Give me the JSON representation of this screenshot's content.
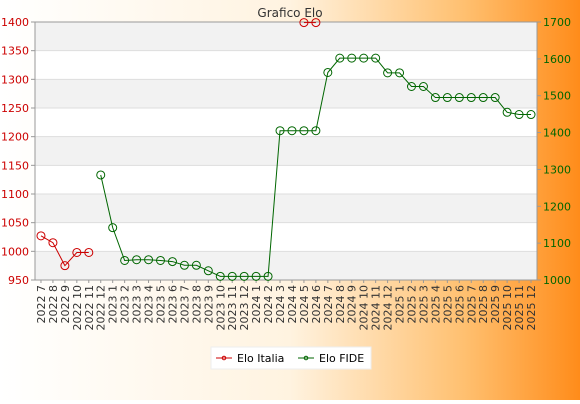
{
  "chart_data": {
    "type": "line",
    "title": "Grafico Elo",
    "categories": [
      "2022 7",
      "2022 8",
      "2022 9",
      "2022 10",
      "2022 11",
      "2022 12",
      "2023 1",
      "2023 2",
      "2023 3",
      "2023 4",
      "2023 5",
      "2023 6",
      "2023 7",
      "2023 8",
      "2023 9",
      "2023 10",
      "2023 11",
      "2023 12",
      "2024 1",
      "2024 2",
      "2024 3",
      "2024 4",
      "2024 5",
      "2024 6",
      "2024 7",
      "2024 8",
      "2024 9",
      "2024 10",
      "2024 11",
      "2024 12",
      "2025 1",
      "2025 2",
      "2025 3",
      "2025 4",
      "2025 5",
      "2025 6",
      "2025 7",
      "2025 8",
      "2025 9",
      "2025 10",
      "2025 11",
      "2025 12"
    ],
    "y_left": {
      "min": 950,
      "max": 1400,
      "ticks": [
        950,
        1000,
        1050,
        1100,
        1150,
        1200,
        1250,
        1300,
        1350,
        1400
      ],
      "color": "#cc0000"
    },
    "y_right": {
      "min": 1000,
      "max": 1700,
      "ticks": [
        1000,
        1100,
        1200,
        1300,
        1400,
        1500,
        1600,
        1700
      ],
      "color": "#006600"
    },
    "series": [
      {
        "name": "Elo Italia",
        "axis": "left",
        "color": "#cc0000",
        "values": [
          1027,
          1015,
          975,
          998,
          998,
          null,
          null,
          null,
          null,
          null,
          null,
          null,
          null,
          null,
          null,
          null,
          null,
          null,
          null,
          null,
          null,
          null,
          1399,
          1399,
          null,
          null,
          null,
          null,
          null,
          null,
          null,
          null,
          null,
          null,
          null,
          null,
          null,
          null,
          null,
          null,
          null,
          null
        ]
      },
      {
        "name": "Elo FIDE",
        "axis": "right",
        "color": "#006600",
        "values": [
          null,
          null,
          null,
          null,
          null,
          1285,
          1142,
          1053,
          1055,
          1055,
          1053,
          1050,
          1040,
          1040,
          1025,
          1010,
          1010,
          1010,
          1010,
          1010,
          1405,
          1405,
          1405,
          1405,
          1563,
          1602,
          1602,
          1602,
          1602,
          1562,
          1562,
          1525,
          1525,
          1495,
          1495,
          1495,
          1495,
          1495,
          1495,
          1455,
          1449,
          1449
        ]
      }
    ],
    "legend": [
      "Elo Italia",
      "Elo FIDE"
    ],
    "legend_position": "bottom"
  }
}
